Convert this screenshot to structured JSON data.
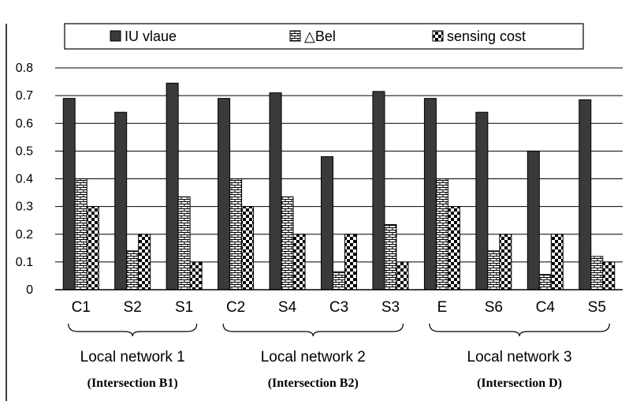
{
  "chart_data": {
    "type": "bar",
    "categories": [
      "C1",
      "S2",
      "S1",
      "C2",
      "S4",
      "C3",
      "S3",
      "E",
      "S6",
      "C4",
      "S5"
    ],
    "series": [
      {
        "name": "IU vlaue",
        "values": [
          0.69,
          0.64,
          0.745,
          0.69,
          0.71,
          0.48,
          0.715,
          0.69,
          0.64,
          0.5,
          0.685
        ]
      },
      {
        "name": "△Bel",
        "values": [
          0.4,
          0.14,
          0.335,
          0.4,
          0.335,
          0.065,
          0.235,
          0.4,
          0.14,
          0.055,
          0.12
        ]
      },
      {
        "name": "sensing cost",
        "values": [
          0.3,
          0.2,
          0.1,
          0.3,
          0.2,
          0.2,
          0.1,
          0.3,
          0.2,
          0.2,
          0.1
        ]
      }
    ],
    "ylim": [
      0,
      0.8
    ],
    "yticks": [
      "0",
      "0.1",
      "0.2",
      "0.3",
      "0.4",
      "0.5",
      "0.6",
      "0.7",
      "0.8"
    ],
    "grid": true,
    "legend_position": "top",
    "groups": [
      {
        "label": "Local network 1",
        "sublabel": "(Intersection B1)",
        "categories": [
          "C1",
          "S2",
          "S1"
        ]
      },
      {
        "label": "Local network 2",
        "sublabel": "(Intersection B2)",
        "categories": [
          "C2",
          "S4",
          "C3",
          "S3"
        ]
      },
      {
        "label": "Local network 3",
        "sublabel": "(Intersection D)",
        "categories": [
          "E",
          "S6",
          "C4",
          "S5"
        ]
      }
    ],
    "colors": {
      "solid": "#3a3a3a",
      "border": "#000000",
      "background": "#ffffff"
    }
  }
}
